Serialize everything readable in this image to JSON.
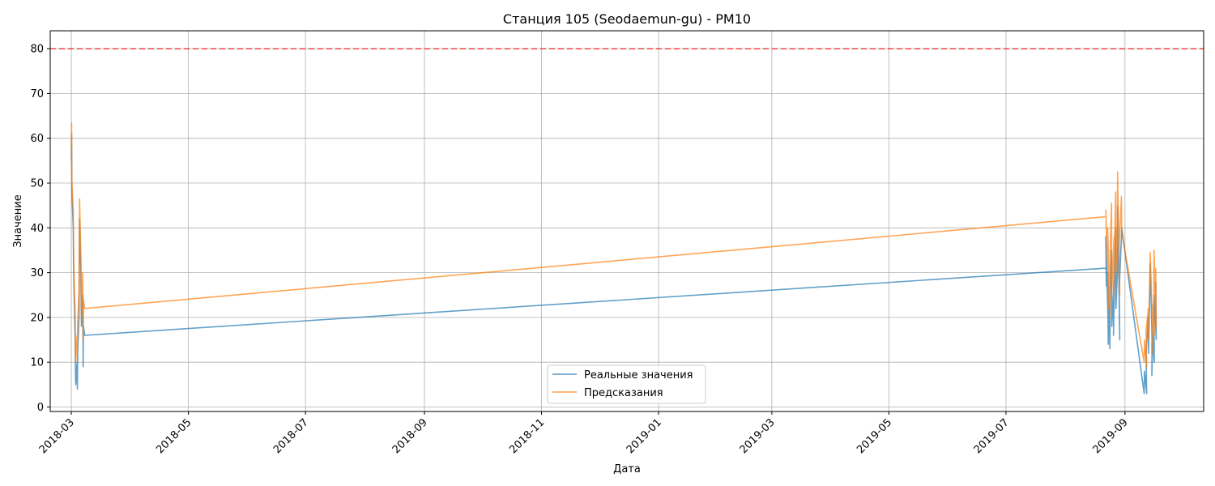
{
  "chart_data": {
    "type": "line",
    "title": "Станция 105 (Seodaemun-gu) - PM10",
    "xlabel": "Дата",
    "ylabel": "Значение",
    "ylim": [
      -1,
      84
    ],
    "xlim": [
      "2018-02-18",
      "2019-10-12"
    ],
    "yticks": [
      0,
      10,
      20,
      30,
      40,
      50,
      60,
      70,
      80
    ],
    "xticks": [
      "2018-03",
      "2018-05",
      "2018-07",
      "2018-09",
      "2018-11",
      "2019-01",
      "2019-03",
      "2019-05",
      "2019-07",
      "2019-09"
    ],
    "grid": true,
    "legend_position": "bottom-center",
    "threshold": {
      "value": 80,
      "color": "#ff0000",
      "style": "dashed"
    },
    "series": [
      {
        "name": "Реальные значения",
        "color": "#1f77b4",
        "points": [
          [
            "2018-03-01",
            55
          ],
          [
            "2018-03-01",
            61
          ],
          [
            "2018-03-01",
            48
          ],
          [
            "2018-03-02",
            40
          ],
          [
            "2018-03-02",
            32
          ],
          [
            "2018-03-02",
            28
          ],
          [
            "2018-03-03",
            15
          ],
          [
            "2018-03-03",
            8
          ],
          [
            "2018-03-03",
            5
          ],
          [
            "2018-03-04",
            10
          ],
          [
            "2018-03-04",
            4
          ],
          [
            "2018-03-04",
            12
          ],
          [
            "2018-03-05",
            20
          ],
          [
            "2018-03-05",
            28
          ],
          [
            "2018-03-05",
            42
          ],
          [
            "2018-03-06",
            30
          ],
          [
            "2018-03-06",
            22
          ],
          [
            "2018-03-06",
            18
          ],
          [
            "2018-03-07",
            25
          ],
          [
            "2018-03-07",
            9
          ],
          [
            "2018-03-07",
            18
          ],
          [
            "2018-03-08",
            16
          ],
          [
            "2019-08-22",
            31
          ],
          [
            "2019-08-22",
            27
          ],
          [
            "2019-08-22",
            38
          ],
          [
            "2019-08-23",
            20
          ],
          [
            "2019-08-23",
            14
          ],
          [
            "2019-08-23",
            30
          ],
          [
            "2019-08-24",
            13
          ],
          [
            "2019-08-24",
            25
          ],
          [
            "2019-08-25",
            35
          ],
          [
            "2019-08-25",
            18
          ],
          [
            "2019-08-26",
            28
          ],
          [
            "2019-08-26",
            16
          ],
          [
            "2019-08-27",
            40
          ],
          [
            "2019-08-27",
            22
          ],
          [
            "2019-08-28",
            30
          ],
          [
            "2019-08-28",
            45
          ],
          [
            "2019-08-29",
            15
          ],
          [
            "2019-08-29",
            26
          ],
          [
            "2019-08-30",
            38
          ],
          [
            "2019-08-30",
            40
          ],
          [
            "2019-09-11",
            3
          ],
          [
            "2019-09-11",
            8
          ],
          [
            "2019-09-12",
            3
          ],
          [
            "2019-09-12",
            12
          ],
          [
            "2019-09-13",
            20
          ],
          [
            "2019-09-13",
            12
          ],
          [
            "2019-09-14",
            28
          ],
          [
            "2019-09-14",
            32
          ],
          [
            "2019-09-15",
            12
          ],
          [
            "2019-09-15",
            7
          ],
          [
            "2019-09-15",
            18
          ],
          [
            "2019-09-16",
            10
          ],
          [
            "2019-09-16",
            22
          ],
          [
            "2019-09-16",
            25
          ],
          [
            "2019-09-17",
            15
          ],
          [
            "2019-09-17",
            28
          ]
        ]
      },
      {
        "name": "Предсказания",
        "color": "#ff7f0e",
        "points": [
          [
            "2018-03-01",
            58
          ],
          [
            "2018-03-01",
            63.5
          ],
          [
            "2018-03-01",
            50
          ],
          [
            "2018-03-02",
            44
          ],
          [
            "2018-03-02",
            38
          ],
          [
            "2018-03-02",
            31
          ],
          [
            "2018-03-03",
            20
          ],
          [
            "2018-03-03",
            14
          ],
          [
            "2018-03-03",
            10
          ],
          [
            "2018-03-04",
            16
          ],
          [
            "2018-03-04",
            12
          ],
          [
            "2018-03-04",
            18
          ],
          [
            "2018-03-05",
            26
          ],
          [
            "2018-03-05",
            38
          ],
          [
            "2018-03-05",
            46.5
          ],
          [
            "2018-03-06",
            33
          ],
          [
            "2018-03-06",
            25
          ],
          [
            "2018-03-06",
            20
          ],
          [
            "2018-03-07",
            30
          ],
          [
            "2018-03-07",
            15
          ],
          [
            "2018-03-07",
            24
          ],
          [
            "2018-03-08",
            22
          ],
          [
            "2019-08-22",
            42.5
          ],
          [
            "2019-08-22",
            38
          ],
          [
            "2019-08-22",
            44
          ],
          [
            "2019-08-23",
            30
          ],
          [
            "2019-08-23",
            22
          ],
          [
            "2019-08-23",
            40
          ],
          [
            "2019-08-24",
            20
          ],
          [
            "2019-08-24",
            35
          ],
          [
            "2019-08-25",
            45.5
          ],
          [
            "2019-08-25",
            26
          ],
          [
            "2019-08-26",
            38
          ],
          [
            "2019-08-26",
            24
          ],
          [
            "2019-08-27",
            48
          ],
          [
            "2019-08-27",
            30
          ],
          [
            "2019-08-28",
            40
          ],
          [
            "2019-08-28",
            52.5
          ],
          [
            "2019-08-29",
            25
          ],
          [
            "2019-08-29",
            36
          ],
          [
            "2019-08-30",
            47
          ],
          [
            "2019-08-30",
            39
          ],
          [
            "2019-09-11",
            10
          ],
          [
            "2019-09-11",
            15
          ],
          [
            "2019-09-12",
            9
          ],
          [
            "2019-09-12",
            17
          ],
          [
            "2019-09-13",
            22
          ],
          [
            "2019-09-13",
            15
          ],
          [
            "2019-09-14",
            30
          ],
          [
            "2019-09-14",
            34.5
          ],
          [
            "2019-09-15",
            18
          ],
          [
            "2019-09-15",
            12
          ],
          [
            "2019-09-15",
            23
          ],
          [
            "2019-09-16",
            16
          ],
          [
            "2019-09-16",
            28
          ],
          [
            "2019-09-16",
            35
          ],
          [
            "2019-09-17",
            18
          ],
          [
            "2019-09-17",
            31
          ]
        ]
      }
    ]
  }
}
